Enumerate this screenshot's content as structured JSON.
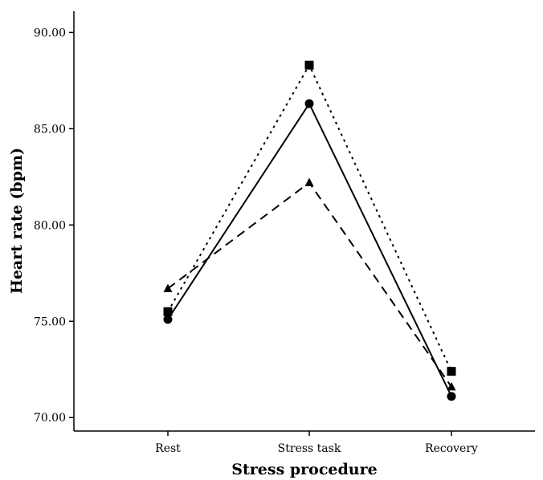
{
  "chart_data": {
    "type": "line",
    "xlabel": "Stress procedure",
    "ylabel": "Heart rate (bpm)",
    "categories": [
      "Rest",
      "Stress task",
      "Recovery"
    ],
    "ylim": [
      69.3,
      91.1
    ],
    "yticks": [
      70,
      75,
      80,
      85,
      90
    ],
    "ytick_labels": [
      "70.00",
      "75.00",
      "80.00",
      "85.00",
      "90.00"
    ],
    "grid": false,
    "series": [
      {
        "values": [
          75.1,
          86.3,
          71.1
        ],
        "marker": "circle",
        "line_style": "solid",
        "color": "#000000"
      },
      {
        "values": [
          75.5,
          88.3,
          72.4
        ],
        "marker": "square",
        "line_style": "dotted",
        "color": "#000000"
      },
      {
        "values": [
          76.7,
          82.2,
          71.6
        ],
        "marker": "triangle",
        "line_style": "dashed",
        "color": "#000000"
      }
    ]
  }
}
